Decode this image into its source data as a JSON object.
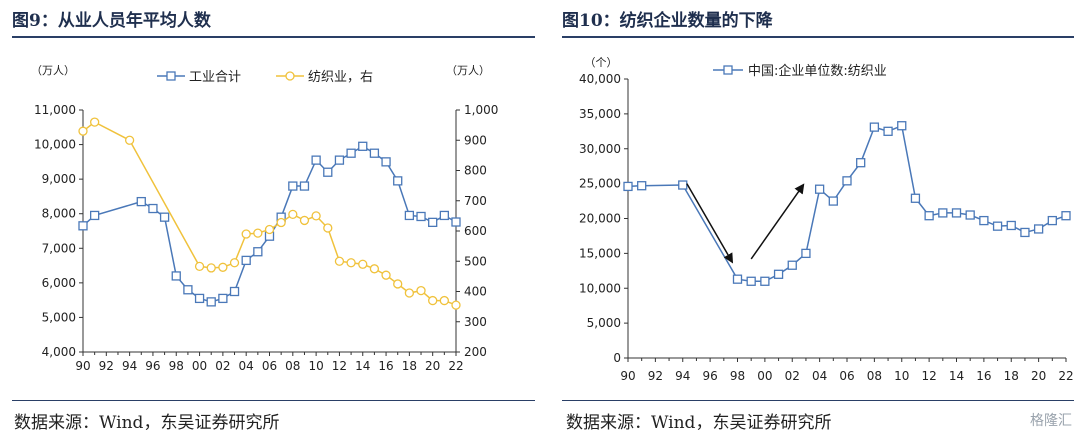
{
  "left": {
    "figure_title": "图9：从业人员年平均人数",
    "source": "数据来源：Wind，东吴证券研究所"
  },
  "right": {
    "figure_title": "图10：纺织企业数量的下降",
    "source": "数据来源：Wind，东吴证券研究所"
  },
  "watermark": "格隆汇",
  "colors": {
    "blue": "#4a78b8",
    "yellow": "#f0c23c",
    "accent": "#2a3f66"
  },
  "chart_data": [
    {
      "type": "line",
      "left_unit": "（万人）",
      "right_unit": "（万人）",
      "ylim_left": [
        4000,
        11000
      ],
      "ylim_right": [
        200,
        1000
      ],
      "yticks_left": [
        "4,000",
        "5,000",
        "6,000",
        "7,000",
        "8,000",
        "9,000",
        "10,000",
        "11,000"
      ],
      "yticks_right": [
        "200",
        "300",
        "400",
        "500",
        "600",
        "700",
        "800",
        "900",
        "1,000"
      ],
      "xlim": [
        1990,
        2022
      ],
      "xtick_labels": [
        "90",
        "92",
        "94",
        "96",
        "98",
        "00",
        "02",
        "04",
        "06",
        "08",
        "10",
        "12",
        "14",
        "16",
        "18",
        "20",
        "22"
      ],
      "series": [
        {
          "name": "工业合计",
          "axis": "left",
          "marker": "square",
          "color": "#4a78b8",
          "x": [
            1990,
            1991,
            1995,
            1996,
            1997,
            1998,
            1999,
            2000,
            2001,
            2002,
            2003,
            2004,
            2005,
            2006,
            2007,
            2008,
            2009,
            2010,
            2011,
            2012,
            2013,
            2014,
            2015,
            2016,
            2017,
            2018,
            2019,
            2020,
            2021,
            2022
          ],
          "y": [
            7650,
            7950,
            8350,
            8150,
            7900,
            6200,
            5800,
            5550,
            5450,
            5550,
            5750,
            6650,
            6900,
            7350,
            7900,
            8800,
            8800,
            9550,
            9200,
            9550,
            9750,
            9950,
            9750,
            9500,
            8950,
            7950,
            7920,
            7750,
            7950,
            7760
          ]
        },
        {
          "name": "纺织业，右",
          "axis": "right",
          "marker": "circle",
          "color": "#f0c23c",
          "x": [
            1990,
            1991,
            1994,
            2000,
            2001,
            2002,
            2003,
            2004,
            2005,
            2006,
            2007,
            2008,
            2009,
            2010,
            2011,
            2012,
            2013,
            2014,
            2015,
            2016,
            2017,
            2018,
            2019,
            2020,
            2021,
            2022
          ],
          "y": [
            930,
            960,
            900,
            483,
            478,
            480,
            495,
            590,
            593,
            605,
            628,
            655,
            635,
            650,
            610,
            500,
            495,
            490,
            475,
            454,
            425,
            395,
            403,
            370,
            370,
            355
          ]
        }
      ]
    },
    {
      "type": "line",
      "left_unit": "（个）",
      "ylim": [
        0,
        40000
      ],
      "yticks": [
        "0",
        "5,000",
        "10,000",
        "15,000",
        "20,000",
        "25,000",
        "30,000",
        "35,000",
        "40,000"
      ],
      "xlim": [
        1990,
        2022
      ],
      "xtick_labels": [
        "90",
        "92",
        "94",
        "96",
        "98",
        "00",
        "02",
        "04",
        "06",
        "08",
        "10",
        "12",
        "14",
        "16",
        "18",
        "20",
        "22"
      ],
      "series": [
        {
          "name": "中国:企业单位数:纺织业",
          "marker": "square",
          "color": "#4a78b8",
          "x": [
            1990,
            1991,
            1994,
            1998,
            1999,
            2000,
            2001,
            2002,
            2003,
            2004,
            2005,
            2006,
            2007,
            2008,
            2009,
            2010,
            2011,
            2012,
            2013,
            2014,
            2015,
            2016,
            2017,
            2018,
            2019,
            2020,
            2021,
            2022
          ],
          "y": [
            24600,
            24700,
            24800,
            11300,
            11000,
            11000,
            12000,
            13300,
            15000,
            24200,
            22500,
            25400,
            28000,
            33100,
            32500,
            33300,
            22900,
            20400,
            20800,
            20800,
            20500,
            19700,
            18900,
            19000,
            18000,
            18500,
            19700,
            20400
          ]
        }
      ],
      "annotations": [
        "down-arrow",
        "up-arrow"
      ]
    }
  ]
}
